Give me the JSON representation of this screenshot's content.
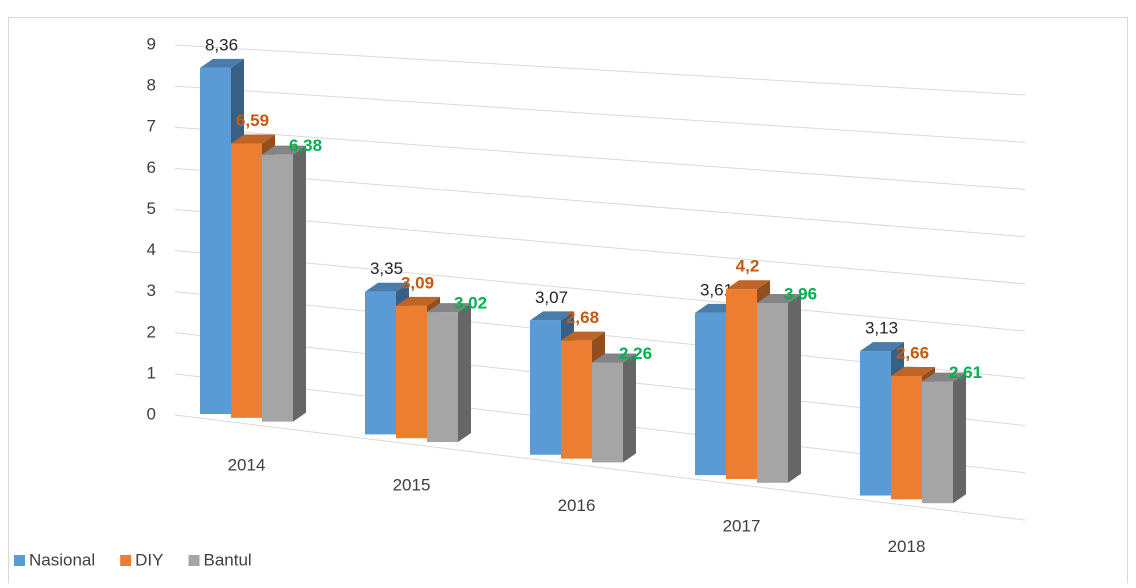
{
  "chart_data": {
    "type": "bar3d",
    "categories": [
      "2014",
      "2015",
      "2016",
      "2017",
      "2018"
    ],
    "series": [
      {
        "name": "Nasional",
        "color": "#5b9bd5",
        "values": [
          8.36,
          3.35,
          3.07,
          3.61,
          3.13
        ],
        "value_labels": [
          "8,36",
          "3,35",
          "3,07",
          "3,61",
          "3,13"
        ],
        "label_color": "#262626"
      },
      {
        "name": "DIY",
        "color": "#ed7d31",
        "values": [
          6.59,
          3.09,
          2.68,
          4.2,
          2.66
        ],
        "value_labels": [
          "6,59",
          "3,09",
          "2,68",
          "4,2",
          "2,66"
        ],
        "label_color": "#c55a11"
      },
      {
        "name": "Bantul",
        "color": "#a5a5a5",
        "values": [
          6.38,
          3.02,
          2.26,
          3.96,
          2.61
        ],
        "value_labels": [
          "6,38",
          "3,02",
          "2,26",
          "3,96",
          "2,61"
        ],
        "label_color": "#00b050"
      }
    ],
    "ylim": [
      0,
      9
    ],
    "yticks": [
      0,
      1,
      2,
      3,
      4,
      5,
      6,
      7,
      8,
      9
    ],
    "grid": true,
    "legend": "bottom-left"
  }
}
